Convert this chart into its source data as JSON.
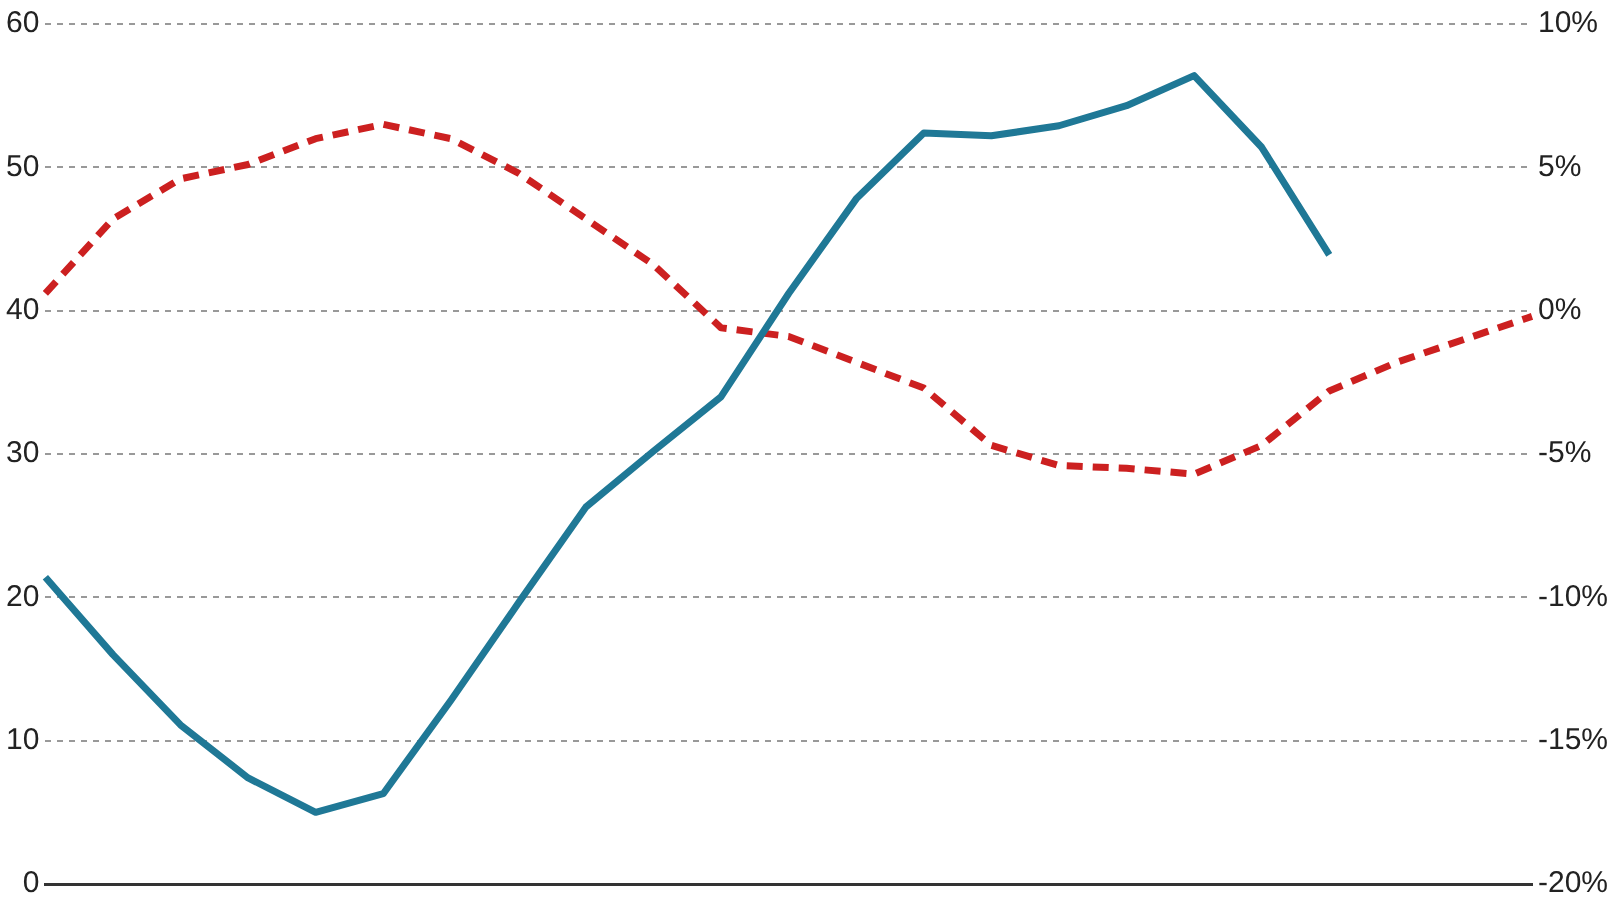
{
  "chart_data": {
    "type": "line",
    "categories": [
      null,
      null,
      null,
      null,
      null,
      null,
      null,
      null,
      null,
      null,
      null,
      null,
      null,
      null,
      null,
      null,
      null,
      null,
      null,
      null,
      null,
      null,
      null
    ],
    "series": [
      {
        "color": "#1f7896",
        "line_style": "solid",
        "values": [
          21.4,
          16,
          11.1,
          7.4,
          5.0,
          6.3,
          12.8,
          19.6,
          26.3,
          30.2,
          34.0,
          41.2,
          47.8,
          52.4,
          52.2,
          52.9,
          54.3,
          56.4,
          51.4,
          43.9,
          null,
          null,
          null
        ]
      },
      {
        "color": "#cc2020",
        "line_style": "dashed",
        "axis": "y2",
        "values": [
          0.6,
          3.2,
          4.6,
          5.1,
          6.0,
          6.5,
          6.0,
          4.8,
          3.2,
          1.6,
          -0.6,
          -0.9,
          -1.8,
          -2.7,
          -4.7,
          -5.4,
          -5.5,
          -5.7,
          -4.7,
          -2.8,
          -1.8,
          -1.0,
          -0.2
        ]
      }
    ],
    "ylim": [
      0,
      60
    ],
    "yticks": [
      0,
      10,
      20,
      30,
      40,
      50,
      60
    ],
    "y2lim": [
      -20,
      10
    ],
    "y2ticks": [
      {
        "value": -20,
        "label": "-20%"
      },
      {
        "value": -15,
        "label": "-15%"
      },
      {
        "value": -10,
        "label": "-10%"
      },
      {
        "value": -5,
        "label": "-5%"
      },
      {
        "value": 0,
        "label": "0%"
      },
      {
        "value": 5,
        "label": "5%"
      },
      {
        "value": 10,
        "label": "10%"
      }
    ],
    "grid": "y",
    "tick_labels": "y",
    "marker": "none",
    "legend": false
  }
}
